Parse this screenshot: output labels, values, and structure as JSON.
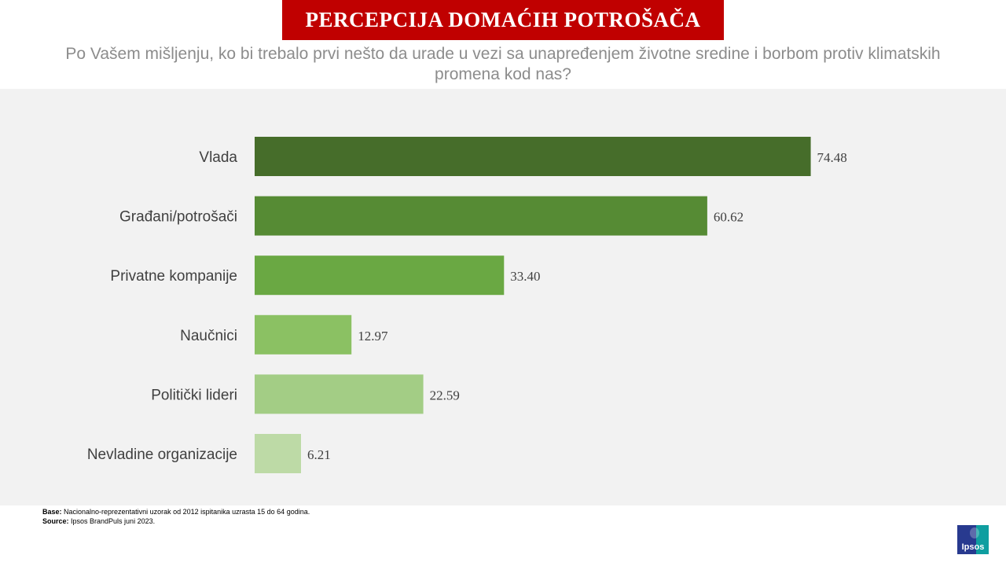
{
  "header": {
    "title": "PERCEPCIJA DOMAĆIH POTROŠAČA",
    "subtitle": "Po Vašem mišljenju, ko bi trebalo prvi nešto da urade u vezi sa unapređenjem životne sredine i borbom protiv klimatskih promena kod nas?"
  },
  "chart_data": {
    "type": "bar",
    "orientation": "horizontal",
    "categories": [
      "Vlada",
      "Građani/potrošači",
      "Privatne kompanije",
      "Naučnici",
      "Politički lideri",
      "Nevladine organizacije"
    ],
    "values": [
      74.48,
      60.62,
      33.4,
      12.97,
      22.59,
      6.21
    ],
    "value_labels": [
      "74.48",
      "60.62",
      "33.40",
      "12.97",
      "22.59",
      "6.21"
    ],
    "colors": [
      "#466d2a",
      "#568b34",
      "#6aa843",
      "#8bc163",
      "#a3cd85",
      "#bddaa6"
    ],
    "xlim": [
      0,
      100
    ],
    "grid": false,
    "legend": "none"
  },
  "footer": {
    "base_label": "Base:",
    "base_text": " Nacionalno-reprezentativni uzorak od 2012 ispitanika uzrasta 15 do 64 godina.",
    "source_label": "Source:",
    "source_text": " Ipsos BrandPuls juni 2023."
  },
  "logo": {
    "text": "Ipsos"
  }
}
